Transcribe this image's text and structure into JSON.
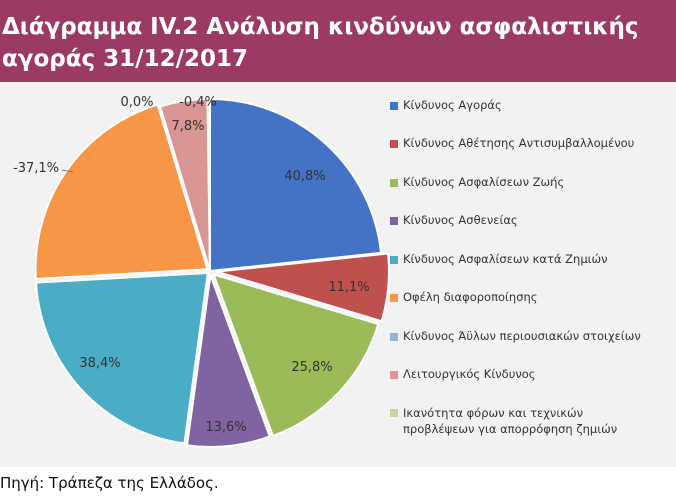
{
  "header": {
    "title_line1": "Διάγραμμα IV.2 Ανάλυση κινδύνων ασφαλιστικής",
    "title_line2": "αγοράς 31/12/2017"
  },
  "source": "Πηγή: Τράπεζα της Ελλάδος.",
  "chart_data": {
    "type": "pie",
    "slices": [
      {
        "name": "Κίνδυνος Αγοράς",
        "value": 40.8,
        "label": "40,8%",
        "color": "#4472c4"
      },
      {
        "name": "Κίνδυνος Αθέτησης Αντισυμβαλλομένου",
        "value": 11.1,
        "label": "11,1%",
        "color": "#c0504d"
      },
      {
        "name": "Κίνδυνος Ασφαλίσεων Ζωής",
        "value": 25.8,
        "label": "25,8%",
        "color": "#9bbb59"
      },
      {
        "name": "Κίνδυνος Ασθενείας",
        "value": 13.6,
        "label": "13,6%",
        "color": "#8064a2"
      },
      {
        "name": "Κίνδυνος Ασφαλίσεων κατά Ζημιών",
        "value": 38.4,
        "label": "38,4%",
        "color": "#4bacc6"
      },
      {
        "name": "Οφέλη διαφοροποίησης",
        "value": -37.1,
        "label": "-37,1%",
        "color": "#f79646"
      },
      {
        "name": "Κίνδυνος Άϋλων περιουσιακών στοιχείων",
        "value": 0.0,
        "label": "0,0%",
        "color": "#95b3d7"
      },
      {
        "name": "Λειτουργικός Κίνδυνος",
        "value": 7.8,
        "label": "7,8%",
        "color": "#da9694"
      },
      {
        "name": "Ικανότητα φόρων και τεχνικών προβλέψεων για απορρόφηση ζημιών",
        "value": -0.4,
        "label": "-0,4%",
        "color": "#c4d79b"
      }
    ],
    "legend_position": "right"
  }
}
